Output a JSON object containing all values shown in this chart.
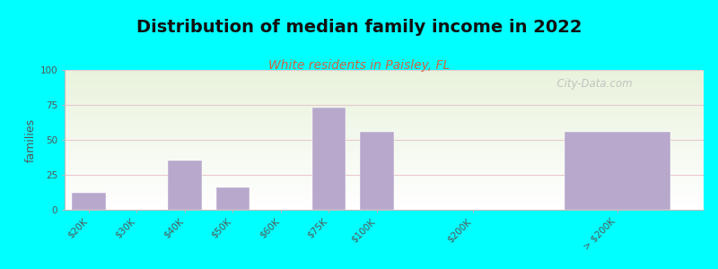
{
  "title": "Distribution of median family income in 2022",
  "subtitle": "White residents in Paisley, FL",
  "ylabel": "families",
  "background_outer": "#00FFFF",
  "bar_color": "#b8a8cc",
  "title_fontsize": 14,
  "subtitle_fontsize": 10,
  "subtitle_color": "#cc6644",
  "ylabel_fontsize": 9,
  "tick_fontsize": 7.5,
  "ylim": [
    0,
    100
  ],
  "yticks": [
    0,
    25,
    50,
    75,
    100
  ],
  "grid_color": "#e8c8d0",
  "categories": [
    "$20K",
    "$30K",
    "$40K",
    "$50K",
    "$60K",
    "$75K",
    "$100K",
    "$200K",
    "> $200K"
  ],
  "values": [
    12,
    0,
    35,
    16,
    0,
    73,
    56,
    0,
    56
  ],
  "bar_positions": [
    0,
    1,
    2,
    3,
    4,
    5,
    6,
    8,
    11
  ],
  "bar_widths": [
    0.7,
    0.7,
    0.7,
    0.7,
    0.7,
    0.7,
    0.7,
    0.7,
    2.2
  ],
  "xlim": [
    -0.5,
    12.8
  ],
  "watermark": "  City-Data.com"
}
